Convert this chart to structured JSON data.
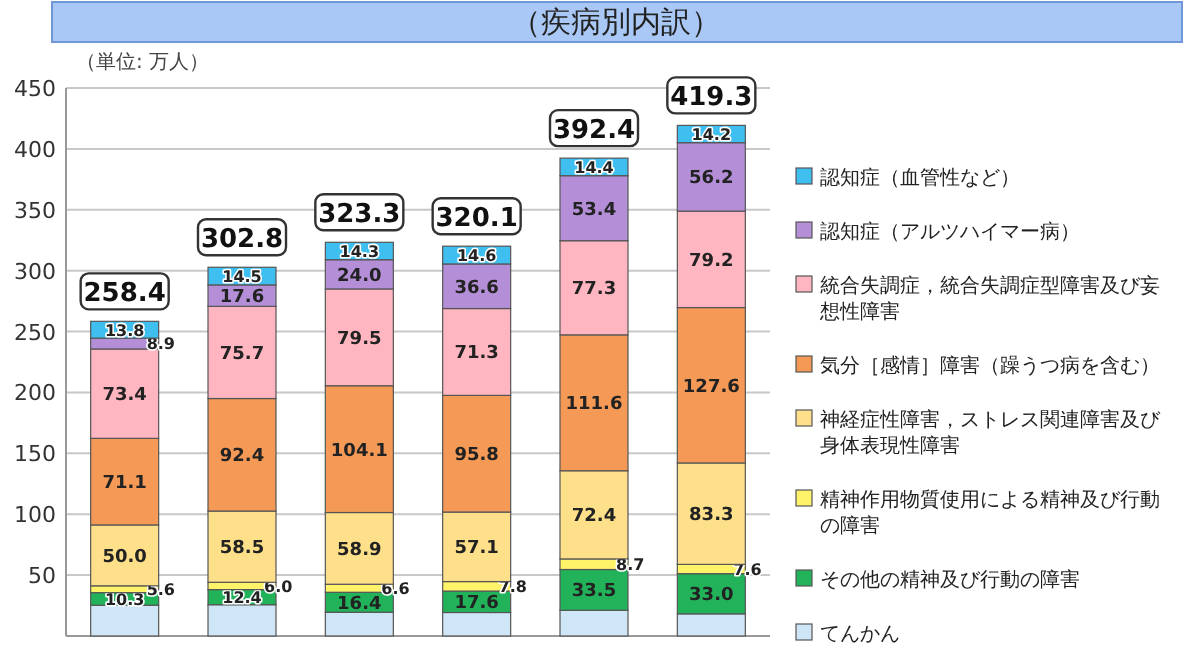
{
  "chart_data": {
    "type": "bar",
    "stacked": true,
    "title": "（疾病別内訳）",
    "annotations": [
      "（単位: 万人）"
    ],
    "categories": [
      null,
      null,
      null,
      null,
      null,
      null
    ],
    "series": [
      {
        "name": "てんかん",
        "color": "#cfe6f7",
        "values": [
          25.3,
          25.7,
          19.5,
          19.3,
          21.1,
          18.2
        ],
        "value_labels": [
          null,
          null,
          null,
          null,
          null,
          null
        ]
      },
      {
        "name": "その他の精神及び行動の障害",
        "color": "#22b35a",
        "values": [
          10.3,
          12.4,
          16.4,
          17.6,
          33.5,
          33.0
        ],
        "value_labels": [
          "10.3",
          "12.4",
          "16.4",
          "17.6",
          "33.5",
          "33.0"
        ]
      },
      {
        "name": "精神作用物質使用による精神及び行動の障害",
        "color": "#fff36a",
        "values": [
          5.6,
          6.0,
          6.6,
          7.8,
          8.7,
          7.6
        ],
        "value_labels": [
          "5.6",
          "6.0",
          "6.6",
          "7.8",
          "8.7",
          "7.6"
        ]
      },
      {
        "name": "神経症性障害，ストレス関連障害及び身体表現性障害",
        "color": "#ffe08a",
        "values": [
          50.0,
          58.5,
          58.9,
          57.1,
          72.4,
          83.3
        ],
        "value_labels": [
          "50.0",
          "58.5",
          "58.9",
          "57.1",
          "72.4",
          "83.3"
        ]
      },
      {
        "name": "気分［感情］障害（躁うつ病を含む）",
        "color": "#f59a56",
        "values": [
          71.1,
          92.4,
          104.1,
          95.8,
          111.6,
          127.6
        ],
        "value_labels": [
          "71.1",
          "92.4",
          "104.1",
          "95.8",
          "111.6",
          "127.6"
        ]
      },
      {
        "name": "統合失調症，統合失調症型障害及び妄想性障害",
        "color": "#ffb6c1",
        "values": [
          73.4,
          75.7,
          79.5,
          71.3,
          77.3,
          79.2
        ],
        "value_labels": [
          "73.4",
          "75.7",
          "79.5",
          "71.3",
          "77.3",
          "79.2"
        ]
      },
      {
        "name": "認知症（アルツハイマー病）",
        "color": "#b48fd8",
        "values": [
          8.9,
          17.6,
          24.0,
          36.6,
          53.4,
          56.2
        ],
        "value_labels": [
          "8.9",
          "17.6",
          "24.0",
          "36.6",
          "53.4",
          "56.2"
        ]
      },
      {
        "name": "認知症（血管性など）",
        "color": "#3fbfef",
        "values": [
          13.8,
          14.5,
          14.3,
          14.6,
          14.4,
          14.2
        ],
        "value_labels": [
          "13.8",
          "14.5",
          "14.3",
          "14.6",
          "14.4",
          "14.2"
        ]
      }
    ],
    "totals": [
      "258.4",
      "302.8",
      "323.3",
      "320.1",
      "392.4",
      "419.3"
    ],
    "ylim": [
      0,
      450
    ],
    "yticks": [
      {
        "value": 0,
        "label": null
      },
      50,
      100,
      150,
      200,
      250,
      300,
      350,
      400,
      450
    ],
    "grid": "y",
    "legend": "right"
  }
}
